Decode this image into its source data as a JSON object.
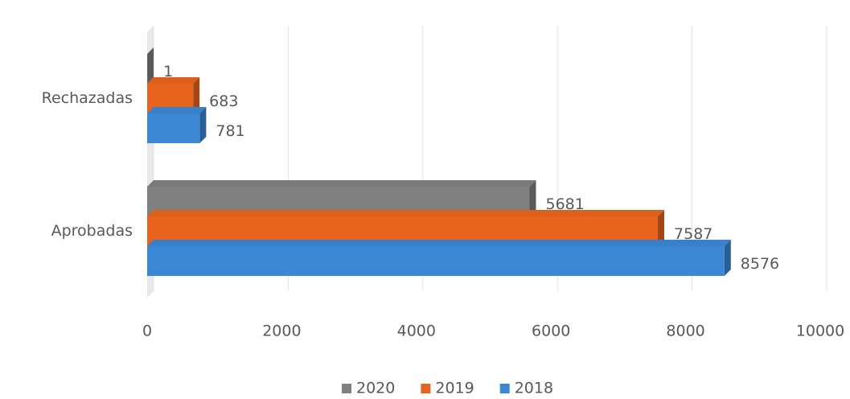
{
  "chart_data": {
    "type": "bar",
    "orientation": "horizontal",
    "categories": [
      "Aprobadas",
      "Rechazadas"
    ],
    "series": [
      {
        "name": "2020",
        "color": "#808080",
        "values": [
          5681,
          1
        ]
      },
      {
        "name": "2019",
        "color": "#e8641e",
        "values": [
          7587,
          683
        ]
      },
      {
        "name": "2018",
        "color": "#3b87d4",
        "values": [
          8576,
          781
        ]
      }
    ],
    "xlim": [
      0,
      10000
    ],
    "xticks": [
      0,
      2000,
      4000,
      6000,
      8000,
      10000
    ],
    "grid": true,
    "legend": "bottom"
  }
}
